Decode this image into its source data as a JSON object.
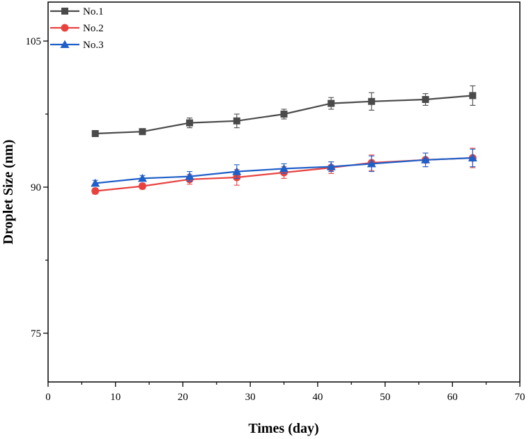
{
  "chart_data": {
    "type": "line",
    "title": "",
    "xlabel": "Times (day)",
    "ylabel": "Droplet Size (nm)",
    "xlim": [
      0,
      70
    ],
    "ylim": [
      70,
      109
    ],
    "xticks": [
      0,
      10,
      20,
      30,
      40,
      50,
      60,
      70
    ],
    "yticks": [
      75,
      90,
      105
    ],
    "xtick_labels": [
      "0",
      "10",
      "20",
      "30",
      "40",
      "50",
      "60",
      "70"
    ],
    "ytick_labels": [
      "75",
      "90",
      "105"
    ],
    "grid": false,
    "legend_position": "top-left",
    "x": [
      7,
      14,
      21,
      28,
      35,
      42,
      48,
      56,
      63
    ],
    "series": [
      {
        "name": "No.1",
        "marker": "square",
        "color": "#4a4a4a",
        "values": [
          95.5,
          95.7,
          96.6,
          96.8,
          97.5,
          98.6,
          98.8,
          99.0,
          99.4
        ],
        "errors": [
          0.3,
          0.3,
          0.5,
          0.7,
          0.5,
          0.6,
          0.9,
          0.6,
          1.0
        ]
      },
      {
        "name": "No.2",
        "marker": "circle",
        "color": "#e8423f",
        "values": [
          89.6,
          90.1,
          90.8,
          91.0,
          91.5,
          92.0,
          92.5,
          92.8,
          93.0
        ],
        "errors": [
          0.3,
          0.3,
          0.5,
          0.8,
          0.6,
          0.6,
          0.8,
          0.7,
          1.0
        ]
      },
      {
        "name": "No.3",
        "marker": "triangle",
        "color": "#1f5fc8",
        "values": [
          90.4,
          90.9,
          91.1,
          91.6,
          91.9,
          92.1,
          92.4,
          92.8,
          93.0
        ],
        "errors": [
          0.3,
          0.3,
          0.5,
          0.7,
          0.5,
          0.5,
          0.8,
          0.7,
          0.9
        ]
      }
    ]
  }
}
